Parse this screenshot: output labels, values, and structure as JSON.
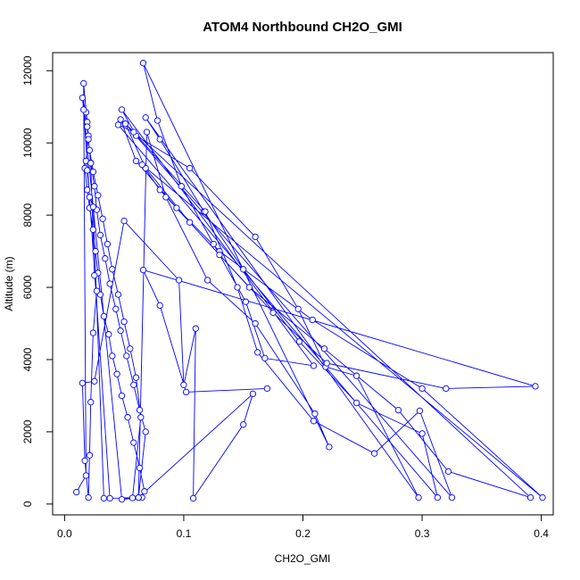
{
  "chart_data": {
    "type": "line",
    "title": "ATOM4 Northbound CH2O_GMI",
    "xlabel": "CH2O_GMI",
    "ylabel": "Altitude (m)",
    "xlim": [
      -0.01,
      0.41
    ],
    "ylim": [
      -300,
      12500
    ],
    "x_ticks": [
      "0.0",
      "0.1",
      "0.2",
      "0.3",
      "0.4"
    ],
    "y_ticks": [
      "0",
      "2000",
      "4000",
      "6000",
      "8000",
      "10000",
      "12000"
    ],
    "grid": false,
    "marker": "open-circle",
    "color": "#0000FF",
    "series": [
      {
        "x": [
          0.01,
          0.018,
          0.016,
          0.019,
          0.02,
          0.018,
          0.017,
          0.019,
          0.021,
          0.024,
          0.026,
          0.028,
          0.03,
          0.033,
          0.037,
          0.04,
          0.044,
          0.048,
          0.053,
          0.058,
          0.063,
          0.067,
          0.065,
          0.048,
          0.015,
          0.018,
          0.02,
          0.022,
          0.025,
          0.027,
          0.03,
          0.034,
          0.038,
          0.043,
          0.047,
          0.052,
          0.058,
          0.063,
          0.068,
          0.062,
          0.038,
          0.016,
          0.019,
          0.021,
          0.024,
          0.028,
          0.032,
          0.036,
          0.04,
          0.045,
          0.05,
          0.055,
          0.06,
          0.064,
          0.057,
          0.033,
          0.024,
          0.021,
          0.019,
          0.022,
          0.025,
          0.027,
          0.024,
          0.022,
          0.021,
          0.02,
          0.017,
          0.015,
          0.025,
          0.05,
          0.096,
          0.1,
          0.11,
          0.108,
          0.15,
          0.158,
          0.062,
          0.069,
          0.085,
          0.12,
          0.16,
          0.21,
          0.222,
          0.066,
          0.078,
          0.098,
          0.125,
          0.152,
          0.168,
          0.209,
          0.048,
          0.06,
          0.105,
          0.16,
          0.196,
          0.219,
          0.245,
          0.297,
          0.068,
          0.08,
          0.117,
          0.15,
          0.197,
          0.245,
          0.3,
          0.313,
          0.045,
          0.058,
          0.118,
          0.145,
          0.162,
          0.209,
          0.26,
          0.298,
          0.325,
          0.051,
          0.068,
          0.105,
          0.155,
          0.218,
          0.28,
          0.322,
          0.391,
          0.047,
          0.06,
          0.094,
          0.13,
          0.208,
          0.3,
          0.401,
          0.065,
          0.08,
          0.13,
          0.175,
          0.22,
          0.32,
          0.395,
          0.066,
          0.08,
          0.102,
          0.17
        ],
        "y": [
          330,
          790,
          11650,
          10580,
          10200,
          9500,
          9300,
          8700,
          8200,
          7600,
          7000,
          6400,
          5800,
          5200,
          4700,
          4100,
          3600,
          3000,
          2400,
          1700,
          1000,
          350,
          180,
          130,
          11250,
          10850,
          10100,
          9450,
          8800,
          8150,
          7450,
          6800,
          6100,
          5400,
          4800,
          4100,
          3300,
          2600,
          2000,
          180,
          160,
          10920,
          10450,
          9800,
          9200,
          8550,
          7900,
          7200,
          6500,
          5800,
          5050,
          4300,
          3500,
          2400,
          170,
          160,
          8230,
          8500,
          9240,
          9440,
          6330,
          5900,
          4740,
          2820,
          1350,
          180,
          1200,
          3350,
          3400,
          7840,
          6200,
          3300,
          4860,
          160,
          2200,
          3050,
          180,
          10300,
          8500,
          6200,
          5000,
          2500,
          1580,
          12210,
          10620,
          8800,
          7200,
          5600,
          4040,
          3830,
          10920,
          10200,
          9300,
          7400,
          5400,
          3800,
          3550,
          180,
          10700,
          10100,
          8100,
          6500,
          4500,
          2800,
          1950,
          180,
          10500,
          10300,
          8100,
          6000,
          4200,
          2300,
          1400,
          2580,
          180,
          10530,
          9300,
          7800,
          6000,
          4300,
          2600,
          900,
          180,
          10650,
          9500,
          8200,
          7000,
          5100,
          3200,
          180,
          9400,
          8700,
          6900,
          5300,
          3900,
          3200,
          3260,
          6480,
          5500,
          3100,
          3200
        ]
      }
    ]
  }
}
